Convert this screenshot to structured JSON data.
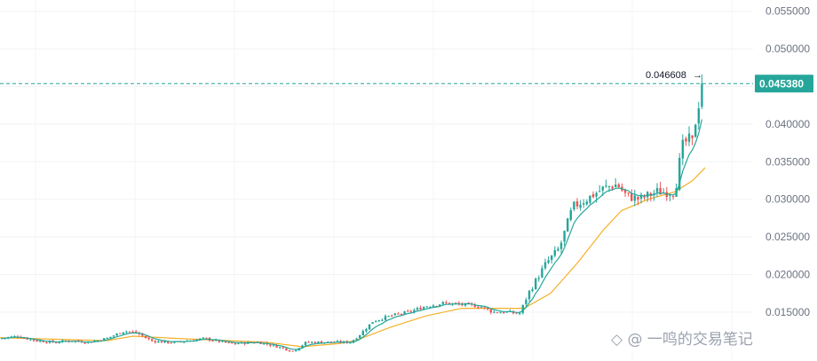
{
  "chart_data": {
    "type": "candlestick",
    "ylim": [
      0.0085,
      0.0565
    ],
    "y_ticks": [
      "0.055000",
      "0.050000",
      "0.045000",
      "0.040000",
      "0.035000",
      "0.030000",
      "0.025000",
      "0.020000",
      "0.015000"
    ],
    "y_tick_values": [
      0.055,
      0.05,
      0.045,
      0.04,
      0.035,
      0.03,
      0.025,
      0.02,
      0.015
    ],
    "current_price": "0.045380",
    "current_price_value": 0.04538,
    "high_label": "0.046608",
    "high_value": 0.046608,
    "grid": true,
    "colors": {
      "up": "#26a69a",
      "down": "#ef5350",
      "ma_fast": "#26a69a",
      "ma_slow": "#f5b027",
      "price_line": "#26a69a",
      "price_tag": "#26a69a"
    },
    "price_path": [
      [
        0,
        0.0115
      ],
      [
        20,
        0.0118
      ],
      [
        40,
        0.0112
      ],
      [
        60,
        0.011
      ],
      [
        80,
        0.0112
      ],
      [
        100,
        0.011
      ],
      [
        120,
        0.0115
      ],
      [
        140,
        0.0125
      ],
      [
        155,
        0.0122
      ],
      [
        170,
        0.0112
      ],
      [
        185,
        0.011
      ],
      [
        200,
        0.011
      ],
      [
        230,
        0.0115
      ],
      [
        260,
        0.0108
      ],
      [
        290,
        0.011
      ],
      [
        310,
        0.0105
      ],
      [
        330,
        0.0098
      ],
      [
        345,
        0.011
      ],
      [
        370,
        0.011
      ],
      [
        395,
        0.011
      ],
      [
        405,
        0.012
      ],
      [
        420,
        0.0138
      ],
      [
        440,
        0.0145
      ],
      [
        460,
        0.015
      ],
      [
        480,
        0.0158
      ],
      [
        500,
        0.0162
      ],
      [
        520,
        0.016
      ],
      [
        540,
        0.0158
      ],
      [
        555,
        0.015
      ],
      [
        570,
        0.015
      ],
      [
        585,
        0.0148
      ],
      [
        595,
        0.0175
      ],
      [
        605,
        0.0195
      ],
      [
        615,
        0.0215
      ],
      [
        630,
        0.0235
      ],
      [
        645,
        0.029
      ],
      [
        660,
        0.03
      ],
      [
        680,
        0.0315
      ],
      [
        695,
        0.032
      ],
      [
        705,
        0.0305
      ],
      [
        720,
        0.03
      ],
      [
        740,
        0.031
      ],
      [
        760,
        0.031
      ],
      [
        768,
        0.037
      ],
      [
        775,
        0.038
      ],
      [
        780,
        0.0375
      ],
      [
        785,
        0.042
      ],
      [
        790,
        0.044
      ],
      [
        794,
        0.0454
      ]
    ],
    "ma_slow_path": [
      [
        0,
        0.0116
      ],
      [
        60,
        0.0114
      ],
      [
        120,
        0.0112
      ],
      [
        150,
        0.0118
      ],
      [
        200,
        0.0115
      ],
      [
        260,
        0.0112
      ],
      [
        300,
        0.011
      ],
      [
        340,
        0.0104
      ],
      [
        380,
        0.0108
      ],
      [
        400,
        0.0112
      ],
      [
        440,
        0.013
      ],
      [
        480,
        0.0145
      ],
      [
        520,
        0.0155
      ],
      [
        560,
        0.0155
      ],
      [
        590,
        0.0155
      ],
      [
        620,
        0.0175
      ],
      [
        650,
        0.0215
      ],
      [
        680,
        0.026
      ],
      [
        700,
        0.0285
      ],
      [
        730,
        0.03
      ],
      [
        760,
        0.031
      ],
      [
        780,
        0.0325
      ],
      [
        794,
        0.0342
      ]
    ]
  },
  "watermark_text": "◇ @ 一鸣的交易笔记"
}
